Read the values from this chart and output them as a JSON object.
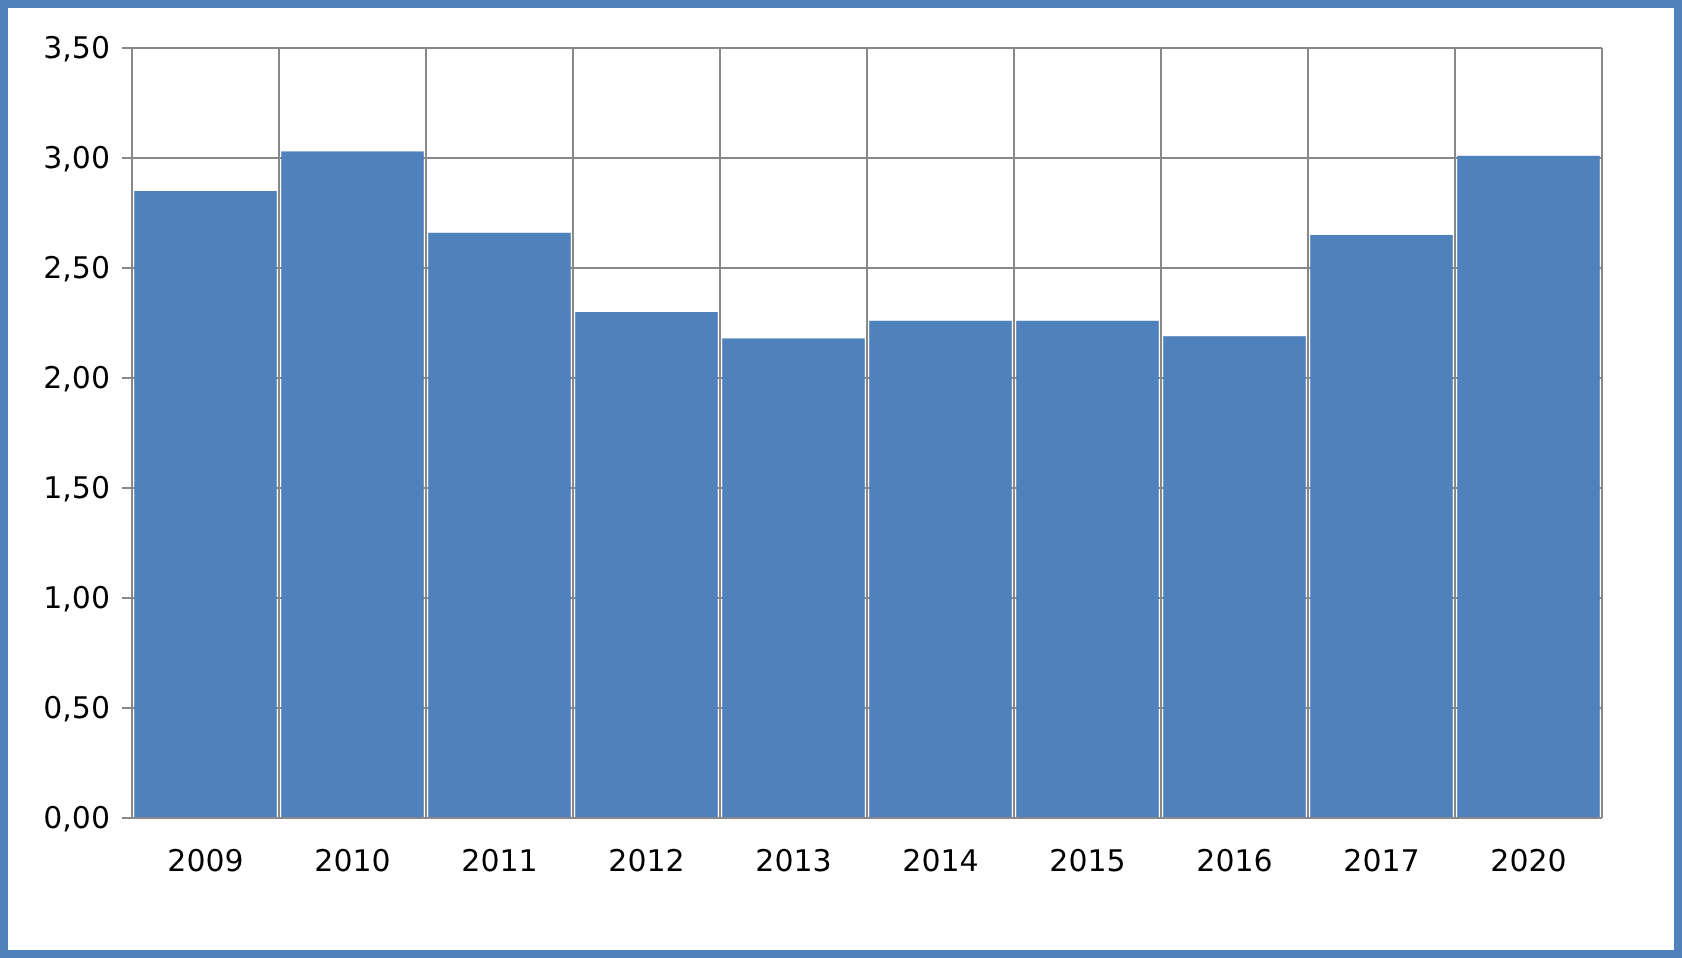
{
  "chart_data": {
    "type": "bar",
    "categories": [
      "2009",
      "2010",
      "2011",
      "2012",
      "2013",
      "2014",
      "2015",
      "2016",
      "2017",
      "2020"
    ],
    "values": [
      2.85,
      3.03,
      2.66,
      2.3,
      2.18,
      2.26,
      2.26,
      2.19,
      2.65,
      3.01
    ],
    "color": "#4f81bd",
    "ylim": [
      0,
      3.5
    ],
    "yticks": [
      {
        "value": 0,
        "label": "0,00"
      },
      {
        "value": 0.5,
        "label": "0,50"
      },
      {
        "value": 1,
        "label": "1,00"
      },
      {
        "value": 1.5,
        "label": "1,50"
      },
      {
        "value": 2,
        "label": "2,00"
      },
      {
        "value": 2.5,
        "label": "2,50"
      },
      {
        "value": 3,
        "label": "3,00"
      },
      {
        "value": 3.5,
        "label": "3,50"
      }
    ],
    "grid": true
  }
}
